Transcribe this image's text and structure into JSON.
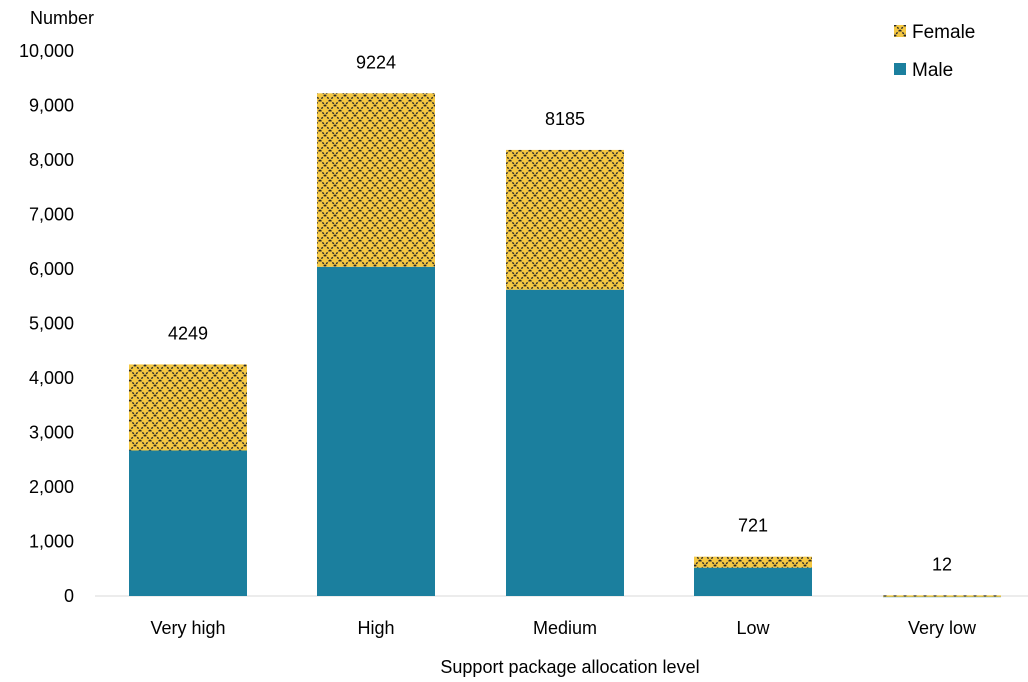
{
  "chart_data": {
    "type": "bar",
    "stacked": true,
    "categories": [
      "Very high",
      "High",
      "Medium",
      "Low",
      "Very low"
    ],
    "series": [
      {
        "name": "Male",
        "values": [
          2670,
          6040,
          5620,
          520,
          6
        ],
        "color": "#1b7f9e",
        "pattern": "solid"
      },
      {
        "name": "Female",
        "values": [
          1579,
          3184,
          2565,
          201,
          6
        ],
        "color": "#f5c842",
        "pattern": "diamond-crosshatch"
      }
    ],
    "totals": [
      "4249",
      "9224",
      "8185",
      "721",
      "12"
    ],
    "xlabel": "Support package allocation level",
    "ylabel": "Number",
    "ylim": [
      0,
      10000
    ],
    "yticks": [
      "0",
      "1,000",
      "2,000",
      "3,000",
      "4,000",
      "5,000",
      "6,000",
      "7,000",
      "8,000",
      "9,000",
      "10,000"
    ],
    "grid": false,
    "legend_position": "top-right"
  }
}
